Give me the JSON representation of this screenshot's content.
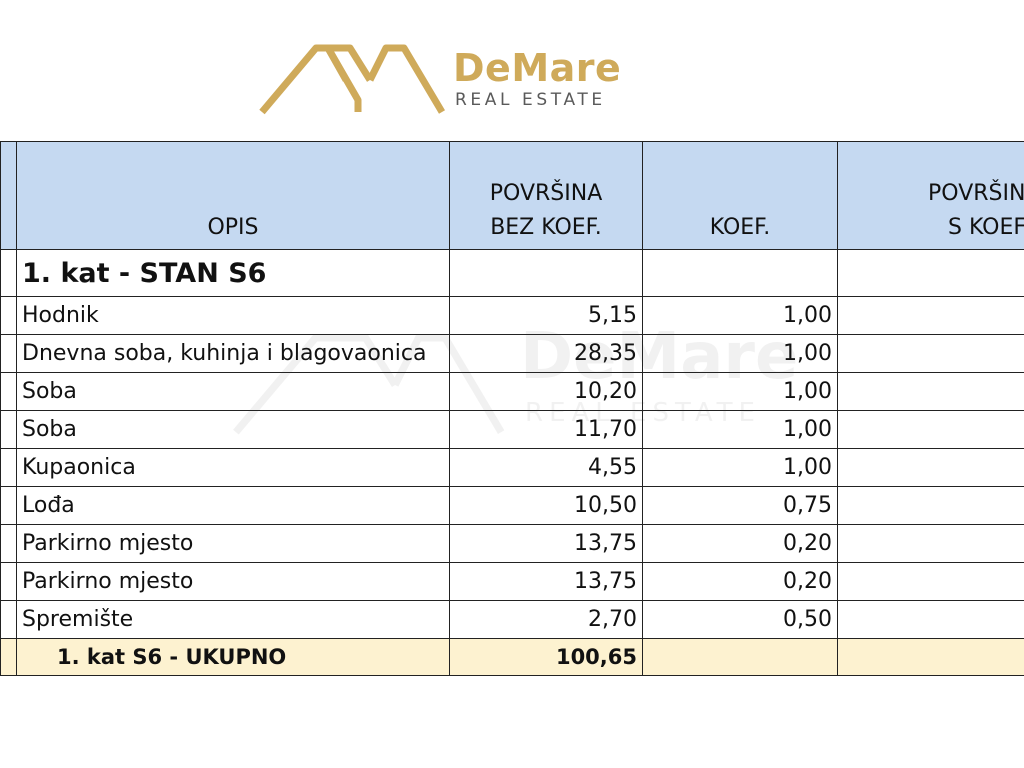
{
  "brand": {
    "name": "DeMare",
    "tagline": "REAL ESTATE",
    "gold": "#cfaa5a"
  },
  "table": {
    "headers": {
      "description": "OPIS",
      "area_no_coef_line1": "POVRŠINA",
      "area_no_coef_line2": "BEZ KOEF.",
      "coef": "KOEF.",
      "area_with_coef_line1": "POVRŠINA",
      "area_with_coef_line2": "S KOEF."
    },
    "header_bg": "#c5d9f1",
    "section_title": "1. kat - STAN S6",
    "rows": [
      {
        "name": "Hodnik",
        "area": "5,15",
        "coef": "1,00"
      },
      {
        "name": "Dnevna soba, kuhinja i blagovaonica",
        "area": "28,35",
        "coef": "1,00"
      },
      {
        "name": "Soba",
        "area": "10,20",
        "coef": "1,00"
      },
      {
        "name": "Soba",
        "area": "11,70",
        "coef": "1,00"
      },
      {
        "name": "Kupaonica",
        "area": "4,55",
        "coef": "1,00"
      },
      {
        "name": "Lođa",
        "area": "10,50",
        "coef": "0,75"
      },
      {
        "name": "Parkirno mjesto",
        "area": "13,75",
        "coef": "0,20"
      },
      {
        "name": "Parkirno mjesto",
        "area": "13,75",
        "coef": "0,20"
      },
      {
        "name": "Spremište",
        "area": "2,70",
        "coef": "0,50"
      }
    ],
    "total": {
      "label": "1. kat S6  -  UKUPNO",
      "area": "100,65"
    },
    "total_bg": "#fdf2d0"
  }
}
